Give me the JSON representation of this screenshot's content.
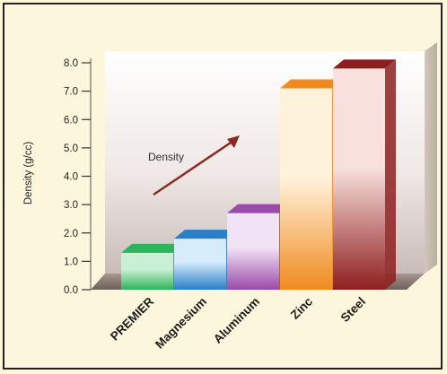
{
  "chart_data": {
    "type": "bar",
    "categories": [
      "PREMIER",
      "Magnesium",
      "Aluminum",
      "Zinc",
      "Steel"
    ],
    "values": [
      1.3,
      1.8,
      2.7,
      7.1,
      7.8
    ],
    "ylabel": "Density (g/cc)",
    "ylim": [
      0,
      8
    ],
    "yticks": [
      "0.0",
      "1.0",
      "2.0",
      "3.0",
      "4.0",
      "5.0",
      "6.0",
      "7.0",
      "8.0"
    ],
    "annotation": "Density",
    "grid": false,
    "colors": {
      "PREMIER": [
        "#2db35a",
        "#c9f0d4"
      ],
      "Magnesium": [
        "#2a7fc9",
        "#d6ecfb"
      ],
      "Aluminum": [
        "#9a4aa8",
        "#f2e2f5"
      ],
      "Zinc": [
        "#f08a1e",
        "#fff1da"
      ],
      "Steel": [
        "#8e1f1f",
        "#f8e0dc"
      ]
    },
    "arrow_color": "#8a2a22"
  }
}
